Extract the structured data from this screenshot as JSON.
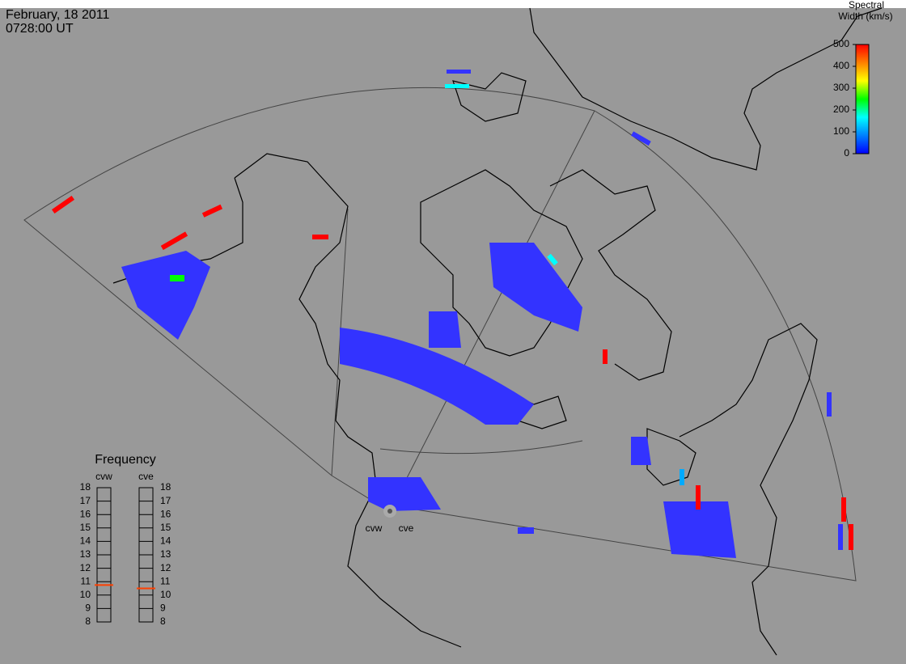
{
  "header": {
    "date": "February, 18 2011",
    "time": "0728:00 UT"
  },
  "colorbar": {
    "title": [
      "Spectral",
      "Width (km/s)"
    ],
    "range": [
      0,
      500
    ],
    "ticks": [
      0,
      100,
      200,
      300,
      400,
      500
    ],
    "colors": [
      "#0000ff",
      "#0080ff",
      "#00ffff",
      "#00ff00",
      "#ffff00",
      "#ff8000",
      "#ff0000"
    ]
  },
  "frequency": {
    "title": "Frequency",
    "range": [
      8,
      18
    ],
    "ticks": [
      8,
      9,
      10,
      11,
      12,
      13,
      14,
      15,
      16,
      17,
      18
    ],
    "marker_color": "#ff4000",
    "radars": [
      {
        "name": "cvw",
        "value": 10.75
      },
      {
        "name": "cve",
        "value": 10.5
      }
    ]
  },
  "stations": [
    "cvw",
    "cve"
  ]
}
